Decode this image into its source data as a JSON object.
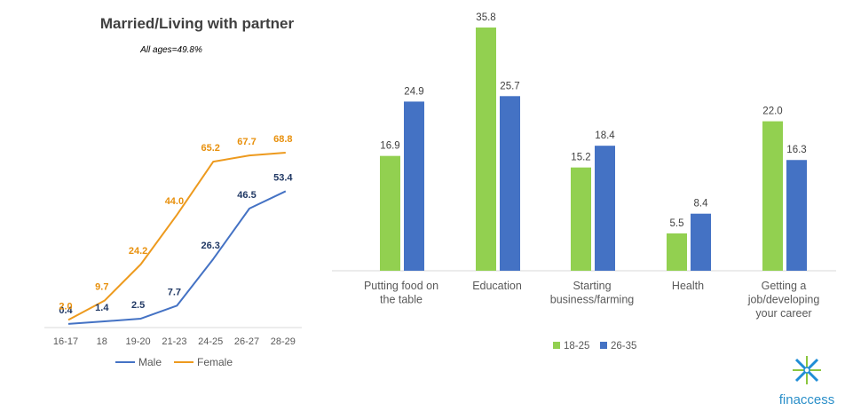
{
  "logo_text": "finaccess",
  "chart_data": [
    {
      "type": "line",
      "title": "Married/Living with partner",
      "subtitle": "All ages=49.8%",
      "categories": [
        "16-17",
        "18",
        "19-20",
        "21-23",
        "24-25",
        "26-27",
        "28-29"
      ],
      "series": [
        {
          "name": "Male",
          "color": "#4472C4",
          "label_color": "#203864",
          "values": [
            0.4,
            1.4,
            2.5,
            7.7,
            26.3,
            46.5,
            53.4
          ]
        },
        {
          "name": "Female",
          "color": "#ED9A1E",
          "label_color": "#E8900C",
          "values": [
            2.0,
            9.7,
            24.2,
            44.0,
            65.2,
            67.7,
            68.8
          ]
        }
      ],
      "ylim": [
        0,
        80
      ],
      "grid": false,
      "legend": "bottom"
    },
    {
      "type": "bar",
      "categories": [
        [
          "Putting food on",
          "the table"
        ],
        [
          "Education"
        ],
        [
          "Starting",
          "business/farming"
        ],
        [
          "Health"
        ],
        [
          "Getting a",
          "job/developing",
          "your career"
        ]
      ],
      "series": [
        {
          "name": "18-25",
          "color": "#92D050",
          "values": [
            16.9,
            35.8,
            15.2,
            5.5,
            22.0
          ]
        },
        {
          "name": "26-35",
          "color": "#4472C4",
          "values": [
            24.9,
            25.7,
            18.4,
            8.4,
            16.3
          ]
        }
      ],
      "ylim": [
        0,
        36
      ],
      "grid": false,
      "legend": "bottom"
    }
  ]
}
